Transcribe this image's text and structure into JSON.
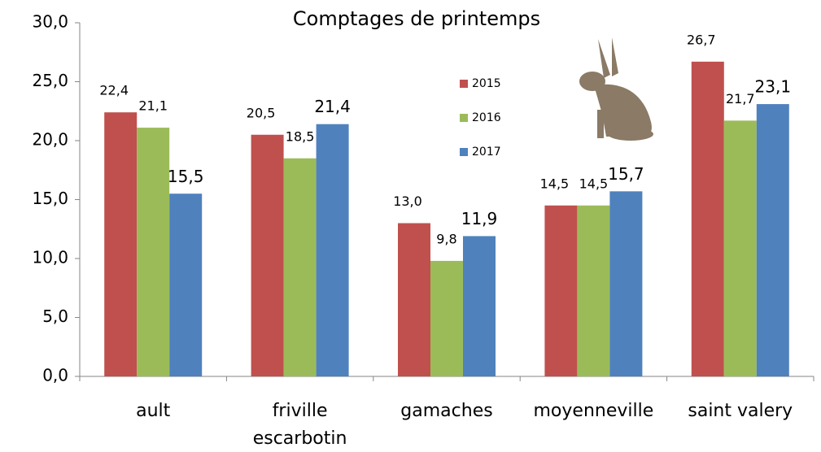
{
  "chart_data": {
    "type": "bar",
    "title": "Comptages de printemps",
    "categories": [
      "ault",
      "friville escarbotin",
      "gamaches",
      "moyenneville",
      "saint valery"
    ],
    "series": [
      {
        "name": "2015",
        "color": "#c0504d",
        "values": [
          22.4,
          20.5,
          13.0,
          14.5,
          26.7
        ],
        "value_labels": [
          "22,4",
          "20,5",
          "13,0",
          "14,5",
          "26,7"
        ]
      },
      {
        "name": "2016",
        "color": "#9bbb59",
        "values": [
          21.1,
          18.5,
          9.8,
          14.5,
          21.7
        ],
        "value_labels": [
          "21,1",
          "18,5",
          "9,8",
          "14,5",
          "21,7"
        ]
      },
      {
        "name": "2017",
        "color": "#4f81bd",
        "values": [
          15.5,
          21.4,
          11.9,
          15.7,
          23.1
        ],
        "value_labels": [
          "15,5",
          "21,4",
          "11,9",
          "15,7",
          "23,1"
        ]
      }
    ],
    "ylim": [
      0,
      30
    ],
    "yticks": [
      {
        "value": 0,
        "label": "0,0"
      },
      {
        "value": 5,
        "label": "5,0"
      },
      {
        "value": 10,
        "label": "10,0"
      },
      {
        "value": 15,
        "label": "15,0"
      },
      {
        "value": 20,
        "label": "20,0"
      },
      {
        "value": 25,
        "label": "25,0"
      },
      {
        "value": 30,
        "label": "30,0"
      }
    ],
    "grid": false
  }
}
